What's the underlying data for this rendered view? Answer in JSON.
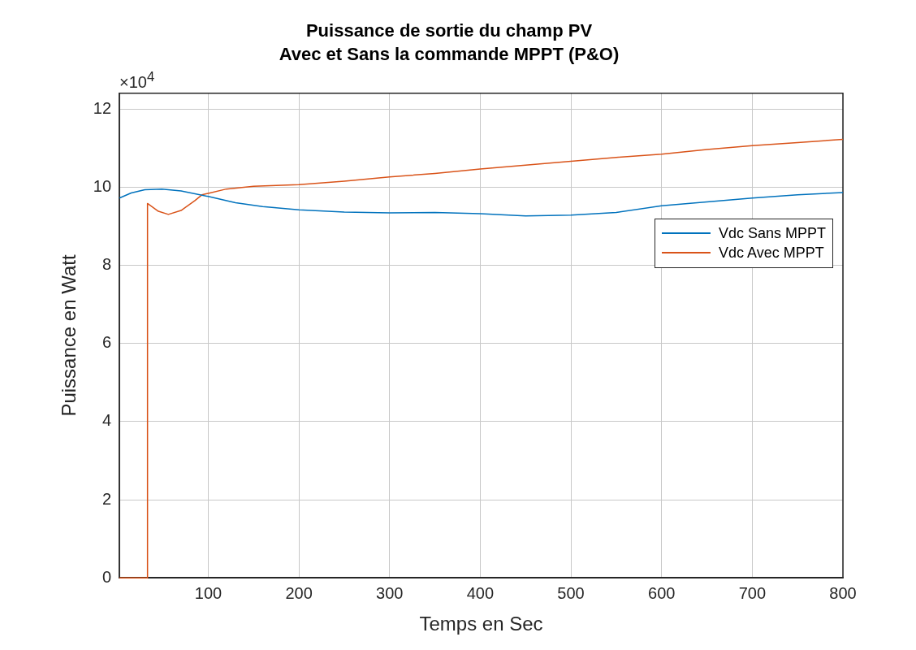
{
  "chart_data": {
    "type": "line",
    "title": "Puissance de sortie du champ PV",
    "subtitle": "Avec et Sans la commande MPPT (P&O)",
    "xlabel": "Temps en Sec",
    "ylabel": "Puissance en Watt",
    "annotations": [
      "×10$^{4}$"
    ],
    "xlim": [
      2,
      800
    ],
    "xticks": [
      100,
      200,
      300,
      400,
      500,
      600,
      700,
      800
    ],
    "ylim": [
      0,
      12.4
    ],
    "yticks": [
      0,
      2,
      4,
      6,
      8,
      10,
      12
    ],
    "grid": true,
    "legend": "right",
    "marker": "none",
    "line_style": "solid",
    "series": [
      {
        "name": "Vdc Sans MPPT",
        "color": "#0072bd",
        "x": [
          2,
          15,
          30,
          49,
          70,
          100,
          130,
          160,
          200,
          250,
          300,
          350,
          400,
          450,
          500,
          550,
          600,
          650,
          700,
          750,
          800
        ],
        "values": [
          9.72,
          9.85,
          9.93,
          9.95,
          9.9,
          9.76,
          9.6,
          9.5,
          9.42,
          9.36,
          9.34,
          9.35,
          9.32,
          9.26,
          9.28,
          9.35,
          9.52,
          9.62,
          9.72,
          9.8,
          9.86
        ]
      },
      {
        "name": "Vdc Avec MPPT",
        "color": "#d95319",
        "x": [
          2,
          33,
          33,
          45,
          56,
          70,
          85,
          93,
          100,
          120,
          150,
          200,
          250,
          300,
          350,
          400,
          450,
          500,
          550,
          600,
          650,
          700,
          750,
          800
        ],
        "values": [
          0,
          0,
          9.58,
          9.38,
          9.3,
          9.4,
          9.65,
          9.8,
          9.84,
          9.95,
          10.02,
          10.06,
          10.15,
          10.26,
          10.35,
          10.46,
          10.56,
          10.66,
          10.76,
          10.84,
          10.96,
          11.06,
          11.14,
          11.22
        ]
      }
    ]
  }
}
